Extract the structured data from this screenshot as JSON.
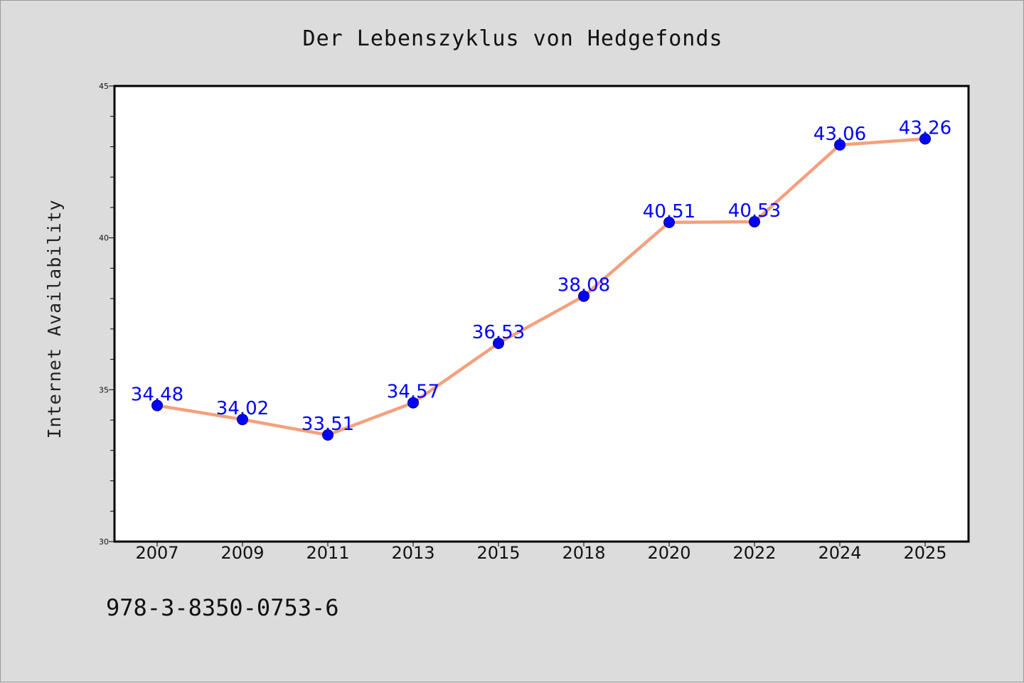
{
  "chart_data": {
    "type": "line",
    "title": "Der Lebenszyklus von Hedgefonds",
    "xlabel": "",
    "ylabel": "Internet Availability",
    "categories": [
      "2007",
      "2009",
      "2011",
      "2013",
      "2015",
      "2018",
      "2020",
      "2022",
      "2024",
      "2025"
    ],
    "series": [
      {
        "values": [
          34.48,
          34.02,
          33.51,
          34.57,
          36.53,
          38.08,
          40.51,
          40.53,
          43.06,
          43.26
        ],
        "data_labels": [
          "34.48",
          "34.02",
          "33.51",
          "34.57",
          "36.53",
          "38.08",
          "40.51",
          "40.53",
          "43.06",
          "43.26"
        ],
        "line_color": "#f4a07e",
        "marker_color": "#0000ff"
      }
    ],
    "ylim": [
      30,
      45
    ],
    "yticks": [
      "30",
      "35",
      "40",
      "45"
    ],
    "grid": false,
    "legend": "none"
  },
  "annotation": "978-3-8350-0753-6",
  "colors": {
    "background": "#dcdcdc",
    "plot_background": "#ffffff",
    "axis": "#000000",
    "line": "#f4a07e",
    "marker": "#0000ff",
    "label": "#0000ff"
  }
}
